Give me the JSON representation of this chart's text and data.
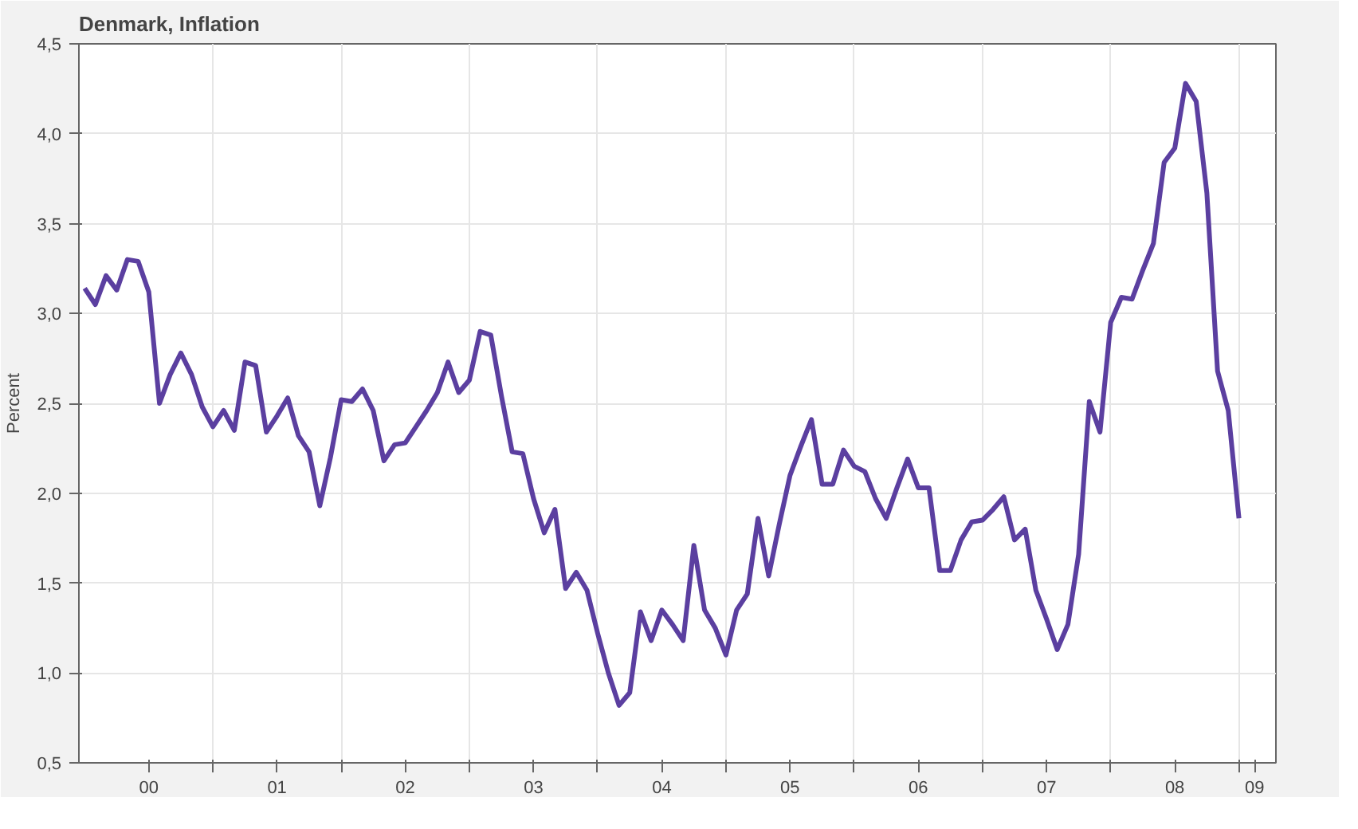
{
  "chart_data": {
    "type": "line",
    "title": "Denmark, Inflation",
    "ylabel": "Percent",
    "x": [
      "2000-01",
      "2000-02",
      "2000-03",
      "2000-04",
      "2000-05",
      "2000-06",
      "2000-07",
      "2000-08",
      "2000-09",
      "2000-10",
      "2000-11",
      "2000-12",
      "2001-01",
      "2001-02",
      "2001-03",
      "2001-04",
      "2001-05",
      "2001-06",
      "2001-07",
      "2001-08",
      "2001-09",
      "2001-10",
      "2001-11",
      "2001-12",
      "2002-01",
      "2002-02",
      "2002-03",
      "2002-04",
      "2002-05",
      "2002-06",
      "2002-07",
      "2002-08",
      "2002-09",
      "2002-10",
      "2002-11",
      "2002-12",
      "2003-01",
      "2003-02",
      "2003-03",
      "2003-04",
      "2003-05",
      "2003-06",
      "2003-07",
      "2003-08",
      "2003-09",
      "2003-10",
      "2003-11",
      "2003-12",
      "2004-01",
      "2004-02",
      "2004-03",
      "2004-04",
      "2004-05",
      "2004-06",
      "2004-07",
      "2004-08",
      "2004-09",
      "2004-10",
      "2004-11",
      "2004-12",
      "2005-01",
      "2005-02",
      "2005-03",
      "2005-04",
      "2005-05",
      "2005-06",
      "2005-07",
      "2005-08",
      "2005-09",
      "2005-10",
      "2005-11",
      "2005-12",
      "2006-01",
      "2006-02",
      "2006-03",
      "2006-04",
      "2006-05",
      "2006-06",
      "2006-07",
      "2006-08",
      "2006-09",
      "2006-10",
      "2006-11",
      "2006-12",
      "2007-01",
      "2007-02",
      "2007-03",
      "2007-04",
      "2007-05",
      "2007-06",
      "2007-07",
      "2007-08",
      "2007-09",
      "2007-10",
      "2007-11",
      "2007-12",
      "2008-01",
      "2008-02",
      "2008-03",
      "2008-04",
      "2008-05",
      "2008-06",
      "2008-07",
      "2008-08",
      "2008-09",
      "2008-10",
      "2008-11",
      "2008-12",
      "2009-01"
    ],
    "series": [
      {
        "color": "#5b3fa0",
        "values": [
          3.14,
          3.05,
          3.21,
          3.13,
          3.3,
          3.29,
          3.12,
          2.5,
          2.66,
          2.78,
          2.66,
          2.48,
          2.37,
          2.46,
          2.35,
          2.73,
          2.71,
          2.34,
          2.43,
          2.53,
          2.32,
          2.23,
          1.93,
          2.2,
          2.52,
          2.51,
          2.58,
          2.46,
          2.18,
          2.27,
          2.28,
          2.37,
          2.46,
          2.56,
          2.73,
          2.56,
          2.63,
          2.9,
          2.88,
          2.54,
          2.23,
          2.22,
          1.97,
          1.78,
          1.91,
          1.47,
          1.56,
          1.46,
          1.22,
          1.0,
          0.82,
          0.89,
          1.34,
          1.18,
          1.35,
          1.27,
          1.18,
          1.71,
          1.35,
          1.25,
          1.1,
          1.35,
          1.44,
          1.86,
          1.54,
          1.83,
          2.1,
          2.26,
          2.41,
          2.05,
          2.05,
          2.24,
          2.15,
          2.12,
          1.97,
          1.86,
          2.03,
          2.19,
          2.03,
          2.03,
          1.57,
          1.57,
          1.74,
          1.84,
          1.85,
          1.91,
          1.98,
          1.74,
          1.8,
          1.46,
          1.3,
          1.13,
          1.27,
          1.66,
          2.51,
          2.34,
          2.95,
          3.09,
          3.08,
          3.24,
          3.39,
          3.84,
          3.92,
          4.28,
          4.18,
          3.67,
          2.68,
          2.46,
          1.86
        ]
      }
    ],
    "xlim": [
      "1999-12-15",
      "2009-04-15"
    ],
    "xticks": [
      {
        "value": "2000-07",
        "label": "00"
      },
      {
        "value": "2001-07",
        "label": "01"
      },
      {
        "value": "2002-07",
        "label": "02"
      },
      {
        "value": "2003-07",
        "label": "03"
      },
      {
        "value": "2004-07",
        "label": "04"
      },
      {
        "value": "2005-07",
        "label": "05"
      },
      {
        "value": "2006-07",
        "label": "06"
      },
      {
        "value": "2007-07",
        "label": "07"
      },
      {
        "value": "2008-07",
        "label": "08"
      },
      {
        "value": "2009-02-15",
        "label": "09"
      },
      {
        "value": "2001-01",
        "label": null
      },
      {
        "value": "2002-01",
        "label": null
      },
      {
        "value": "2003-01",
        "label": null
      },
      {
        "value": "2004-01",
        "label": null
      },
      {
        "value": "2005-01",
        "label": null
      },
      {
        "value": "2006-01",
        "label": null
      },
      {
        "value": "2007-01",
        "label": null
      },
      {
        "value": "2008-01",
        "label": null
      },
      {
        "value": "2009-01",
        "label": null
      }
    ],
    "ylim": [
      0.5,
      4.5
    ],
    "yticks": [
      {
        "value": 0.5,
        "label": "0,5"
      },
      {
        "value": 1.0,
        "label": "1,0"
      },
      {
        "value": 1.5,
        "label": "1,5"
      },
      {
        "value": 2.0,
        "label": "2,0"
      },
      {
        "value": 2.5,
        "label": "2,5"
      },
      {
        "value": 3.0,
        "label": "3,0"
      },
      {
        "value": 3.5,
        "label": "3,5"
      },
      {
        "value": 4.0,
        "label": "4,0"
      },
      {
        "value": 4.5,
        "label": "4,5"
      }
    ],
    "grid": true,
    "line_style": "solid"
  }
}
